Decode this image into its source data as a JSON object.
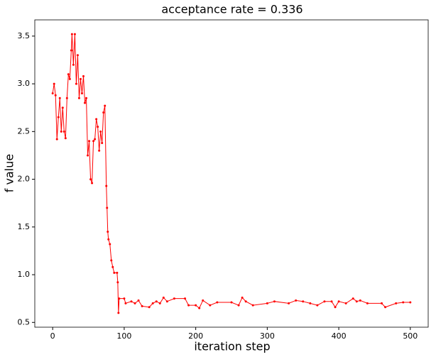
{
  "chart_data": {
    "type": "line",
    "title": "acceptance rate = 0.336",
    "x_label": "iteration step",
    "y_label": "f value",
    "x": [
      0,
      2,
      4,
      6,
      8,
      10,
      12,
      14,
      16,
      18,
      20,
      22,
      24,
      26,
      27,
      29,
      31,
      33,
      35,
      37,
      39,
      41,
      43,
      45,
      47,
      49,
      51,
      53,
      55,
      57,
      59,
      61,
      63,
      65,
      67,
      69,
      71,
      73,
      75,
      76,
      77,
      78,
      80,
      82,
      84,
      86,
      90,
      91,
      92,
      93,
      100,
      102,
      110,
      115,
      120,
      125,
      135,
      140,
      145,
      150,
      155,
      160,
      170,
      185,
      190,
      200,
      205,
      210,
      220,
      230,
      250,
      260,
      265,
      270,
      280,
      300,
      310,
      330,
      340,
      350,
      360,
      370,
      380,
      390,
      395,
      400,
      410,
      420,
      425,
      430,
      440,
      460,
      465,
      480,
      490,
      500
    ],
    "series": [
      {
        "name": "f",
        "color": "#ff0000",
        "values": [
          2.9,
          3.0,
          2.88,
          2.42,
          2.65,
          2.85,
          2.5,
          2.75,
          2.5,
          2.43,
          2.85,
          3.1,
          3.05,
          3.35,
          3.52,
          3.2,
          3.52,
          3.0,
          3.3,
          2.85,
          3.05,
          2.9,
          3.08,
          2.8,
          2.85,
          2.25,
          2.4,
          2.0,
          1.96,
          2.4,
          2.42,
          2.63,
          2.55,
          2.3,
          2.5,
          2.38,
          2.7,
          2.77,
          1.93,
          1.7,
          1.45,
          1.37,
          1.32,
          1.15,
          1.08,
          1.02,
          1.02,
          0.92,
          0.6,
          0.75,
          0.75,
          0.7,
          0.72,
          0.7,
          0.73,
          0.67,
          0.66,
          0.7,
          0.72,
          0.7,
          0.76,
          0.72,
          0.75,
          0.75,
          0.68,
          0.68,
          0.65,
          0.73,
          0.68,
          0.71,
          0.71,
          0.68,
          0.76,
          0.72,
          0.68,
          0.7,
          0.72,
          0.7,
          0.73,
          0.72,
          0.7,
          0.68,
          0.72,
          0.72,
          0.66,
          0.72,
          0.7,
          0.75,
          0.72,
          0.73,
          0.7,
          0.7,
          0.66,
          0.7,
          0.71,
          0.71
        ]
      }
    ],
    "xlim": [
      -25,
      525
    ],
    "xticks": [
      0,
      100,
      200,
      300,
      400,
      500
    ],
    "ylim": [
      0.45,
      3.67
    ],
    "yticks": [
      0.5,
      {
        "value": 1,
        "label": "1.0"
      },
      1.5,
      {
        "value": 2,
        "label": "2.0"
      },
      2.5,
      {
        "value": 3,
        "label": "3.0"
      },
      3.5
    ],
    "grid": false
  }
}
